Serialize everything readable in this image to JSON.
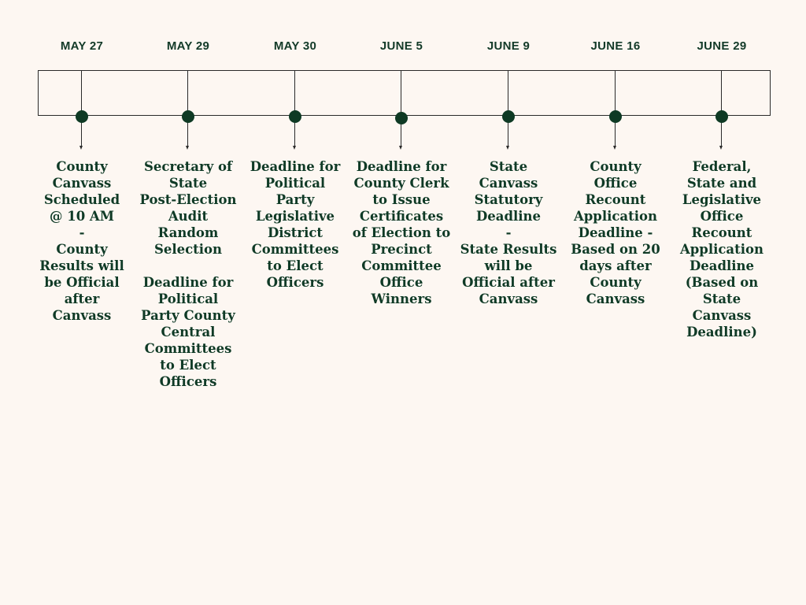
{
  "events": [
    {
      "date": "MAY 27",
      "description": "County\nCanvass\nScheduled\n@ 10 AM\n-\nCounty\nResults will\nbe Official\nafter\nCanvass"
    },
    {
      "date": "MAY 29",
      "description": "Secretary of\nState\nPost-Election\nAudit\nRandom\nSelection\n\nDeadline for\nPolitical\nParty County\nCentral\nCommittees\nto Elect\nOfficers"
    },
    {
      "date": "MAY 30",
      "description": "Deadline for\nPolitical\nParty\nLegislative\nDistrict\nCommittees\nto Elect\nOfficers"
    },
    {
      "date": "JUNE 5",
      "description": "Deadline for\nCounty Clerk\nto Issue\nCertificates\nof Election to\nPrecinct\nCommittee\nOffice\nWinners"
    },
    {
      "date": "JUNE 9",
      "description": "State\nCanvass\nStatutory\nDeadline\n-\nState Results\nwill be\nOfficial after\nCanvass"
    },
    {
      "date": "JUNE 16",
      "description": "County\nOffice\nRecount\nApplication\nDeadline -\nBased on 20\ndays after\nCounty\nCanvass"
    },
    {
      "date": "JUNE 29",
      "description": "Federal,\nState and\nLegislative\nOffice\nRecount\nApplication\nDeadline\n(Based on\nState\nCanvass\nDeadline)"
    }
  ]
}
